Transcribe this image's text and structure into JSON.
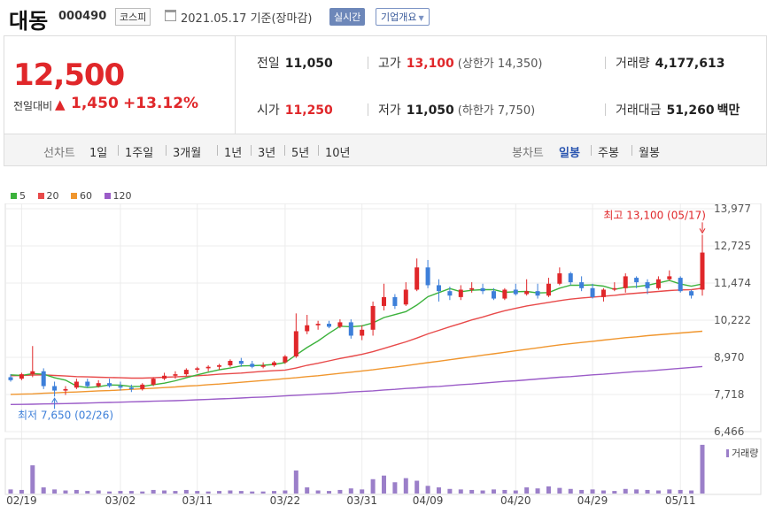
{
  "header": {
    "name": "대동",
    "code": "000490",
    "market": "코스피",
    "date_text": "2021.05.17 기준(장마감)",
    "realtime_label": "실시간",
    "company_label": "기업개요"
  },
  "quote": {
    "price": "12,500",
    "change_label": "전일대비",
    "change_value": "1,450",
    "change_pct": "+13.12%",
    "prev_close_label": "전일",
    "prev_close": "11,050",
    "open_label": "시가",
    "open": "11,250",
    "high_label": "고가",
    "high": "13,100",
    "upper_limit": "(상한가 14,350)",
    "low_label": "저가",
    "low": "11,050",
    "lower_limit": "(하한가 7,750)",
    "volume_label": "거래량",
    "volume": "4,177,613",
    "amount_label": "거래대금",
    "amount": "51,260",
    "amount_unit": "백만"
  },
  "periods": {
    "label": "선차트",
    "items": [
      "1일",
      "1주일",
      "3개월",
      "1년",
      "3년",
      "5년",
      "10년"
    ],
    "candle_label": "봉차트",
    "candle_items": [
      "일봉",
      "주봉",
      "월봉"
    ],
    "active_candle": "일봉"
  },
  "legend": [
    {
      "label": "5",
      "color": "#3cb23c"
    },
    {
      "label": "20",
      "color": "#e84a4a"
    },
    {
      "label": "60",
      "color": "#f0962e"
    },
    {
      "label": "120",
      "color": "#9b5cc8"
    }
  ],
  "chart_data": {
    "type": "candlestick",
    "y_ticks": [
      "13,977",
      "12,725",
      "11,474",
      "10,222",
      "8,970",
      "7,718",
      "6,466"
    ],
    "y_tick_values": [
      13977,
      12725,
      11474,
      10222,
      8970,
      7718,
      6466
    ],
    "ylim": [
      6466,
      13977
    ],
    "x_ticks": [
      "02/19",
      "03/02",
      "03/11",
      "03/22",
      "03/31",
      "04/09",
      "04/20",
      "04/29",
      "05/11"
    ],
    "high_annotation": "최고 13,100 (05/17)",
    "low_annotation": "최저 7,650 (02/26)",
    "volume_label": "거래량",
    "up_color": "#e0272a",
    "down_color": "#3d7fd9",
    "candles": [
      [
        8300,
        8400,
        8150,
        8200
      ],
      [
        8250,
        8450,
        8200,
        8400
      ],
      [
        8400,
        9350,
        8300,
        8500
      ],
      [
        8500,
        8600,
        7900,
        8000
      ],
      [
        8000,
        8150,
        7650,
        7850
      ],
      [
        7850,
        8000,
        7700,
        7900
      ],
      [
        7950,
        8250,
        7900,
        8150
      ],
      [
        8150,
        8250,
        7950,
        8000
      ],
      [
        8000,
        8200,
        7950,
        8100
      ],
      [
        8100,
        8250,
        7950,
        8000
      ],
      [
        8000,
        8150,
        7850,
        7950
      ],
      [
        7950,
        8050,
        7800,
        7900
      ],
      [
        7900,
        8100,
        7850,
        8050
      ],
      [
        8050,
        8300,
        8000,
        8250
      ],
      [
        8250,
        8450,
        8200,
        8350
      ],
      [
        8350,
        8500,
        8250,
        8400
      ],
      [
        8400,
        8600,
        8350,
        8550
      ],
      [
        8550,
        8650,
        8450,
        8600
      ],
      [
        8600,
        8700,
        8500,
        8650
      ],
      [
        8650,
        8750,
        8550,
        8700
      ],
      [
        8700,
        8900,
        8650,
        8850
      ],
      [
        8850,
        8950,
        8650,
        8750
      ],
      [
        8750,
        8850,
        8600,
        8650
      ],
      [
        8650,
        8800,
        8600,
        8700
      ],
      [
        8700,
        8850,
        8650,
        8800
      ],
      [
        8800,
        9050,
        8750,
        9000
      ],
      [
        9000,
        10450,
        8950,
        9850
      ],
      [
        9850,
        10400,
        9750,
        10050
      ],
      [
        10050,
        10200,
        9900,
        10100
      ],
      [
        10100,
        10200,
        9950,
        10000
      ],
      [
        10000,
        10250,
        9950,
        10150
      ],
      [
        10150,
        10250,
        9600,
        9700
      ],
      [
        9700,
        10050,
        9550,
        9900
      ],
      [
        9900,
        10850,
        9700,
        10700
      ],
      [
        10700,
        11450,
        10550,
        11000
      ],
      [
        11000,
        11100,
        10600,
        10700
      ],
      [
        10750,
        11500,
        10700,
        11250
      ],
      [
        11250,
        12300,
        11200,
        12000
      ],
      [
        12000,
        12250,
        11300,
        11400
      ],
      [
        11400,
        11600,
        10850,
        11200
      ],
      [
        11200,
        11350,
        10900,
        11050
      ],
      [
        11000,
        11400,
        10900,
        11250
      ],
      [
        11250,
        11500,
        11150,
        11300
      ],
      [
        11300,
        11450,
        11100,
        11200
      ],
      [
        11200,
        11300,
        10900,
        10950
      ],
      [
        10950,
        11300,
        10900,
        11250
      ],
      [
        11250,
        11450,
        11050,
        11100
      ],
      [
        11100,
        11600,
        11050,
        11200
      ],
      [
        11200,
        11450,
        10950,
        11050
      ],
      [
        11050,
        11650,
        11000,
        11450
      ],
      [
        11450,
        12000,
        11400,
        11800
      ],
      [
        11800,
        11850,
        11400,
        11500
      ],
      [
        11500,
        11700,
        11200,
        11300
      ],
      [
        11300,
        11450,
        10950,
        11000
      ],
      [
        11000,
        11300,
        10850,
        11250
      ],
      [
        11250,
        11500,
        11200,
        11300
      ],
      [
        11300,
        11800,
        11150,
        11700
      ],
      [
        11650,
        11700,
        11300,
        11500
      ],
      [
        11500,
        11600,
        11100,
        11300
      ],
      [
        11300,
        11700,
        11250,
        11600
      ],
      [
        11600,
        11900,
        11550,
        11700
      ],
      [
        11650,
        11700,
        11150,
        11200
      ],
      [
        11200,
        11250,
        10950,
        11050
      ],
      [
        11250,
        13100,
        11050,
        12500
      ]
    ],
    "volumes": [
      0.08,
      0.07,
      0.55,
      0.12,
      0.08,
      0.06,
      0.07,
      0.05,
      0.06,
      0.04,
      0.05,
      0.05,
      0.04,
      0.07,
      0.06,
      0.05,
      0.07,
      0.05,
      0.04,
      0.05,
      0.06,
      0.05,
      0.04,
      0.04,
      0.05,
      0.06,
      0.45,
      0.12,
      0.06,
      0.05,
      0.07,
      0.1,
      0.08,
      0.28,
      0.35,
      0.22,
      0.3,
      0.25,
      0.15,
      0.12,
      0.09,
      0.08,
      0.07,
      0.06,
      0.08,
      0.07,
      0.06,
      0.12,
      0.1,
      0.14,
      0.11,
      0.09,
      0.07,
      0.08,
      0.06,
      0.05,
      0.09,
      0.08,
      0.07,
      0.06,
      0.08,
      0.07,
      0.06,
      0.95
    ],
    "ma5": [
      8380,
      8360,
      8420,
      8400,
      8280,
      8200,
      8000,
      7950,
      7980,
      8040,
      8030,
      7990,
      7990,
      8050,
      8100,
      8180,
      8280,
      8380,
      8470,
      8550,
      8610,
      8680,
      8690,
      8700,
      8730,
      8790,
      9050,
      9300,
      9520,
      9780,
      10020,
      10000,
      10030,
      10130,
      10310,
      10410,
      10510,
      10730,
      11010,
      11150,
      11290,
      11180,
      11230,
      11250,
      11250,
      11160,
      11180,
      11190,
      11140,
      11150,
      11300,
      11400,
      11400,
      11410,
      11370,
      11260,
      11330,
      11350,
      11400,
      11480,
      11560,
      11440,
      11370,
      11440
    ],
    "ma20": [
      8350,
      8360,
      8370,
      8380,
      8360,
      8340,
      8320,
      8310,
      8300,
      8290,
      8280,
      8270,
      8270,
      8280,
      8300,
      8310,
      8330,
      8350,
      8370,
      8400,
      8420,
      8440,
      8470,
      8500,
      8520,
      8540,
      8610,
      8700,
      8770,
      8850,
      8930,
      9000,
      9070,
      9160,
      9270,
      9380,
      9490,
      9620,
      9760,
      9880,
      10000,
      10110,
      10230,
      10330,
      10440,
      10540,
      10620,
      10700,
      10760,
      10820,
      10880,
      10930,
      10970,
      11000,
      11030,
      11060,
      11100,
      11130,
      11160,
      11190,
      11220,
      11240,
      11250,
      11300
    ],
    "ma60": [
      7720,
      7730,
      7740,
      7760,
      7770,
      7790,
      7800,
      7820,
      7840,
      7850,
      7870,
      7890,
      7910,
      7930,
      7950,
      7970,
      8000,
      8020,
      8050,
      8070,
      8100,
      8130,
      8160,
      8190,
      8220,
      8250,
      8280,
      8320,
      8350,
      8390,
      8430,
      8470,
      8510,
      8550,
      8600,
      8640,
      8690,
      8740,
      8790,
      8840,
      8890,
      8940,
      8990,
      9040,
      9090,
      9140,
      9190,
      9240,
      9290,
      9340,
      9390,
      9430,
      9470,
      9510,
      9550,
      9590,
      9630,
      9660,
      9700,
      9730,
      9760,
      9790,
      9820,
      9850
    ],
    "ma120": [
      7380,
      7385,
      7390,
      7400,
      7405,
      7410,
      7420,
      7430,
      7440,
      7450,
      7460,
      7470,
      7480,
      7490,
      7500,
      7510,
      7520,
      7540,
      7550,
      7570,
      7580,
      7600,
      7620,
      7630,
      7650,
      7670,
      7690,
      7710,
      7730,
      7750,
      7770,
      7800,
      7820,
      7840,
      7870,
      7890,
      7920,
      7940,
      7970,
      7990,
      8020,
      8050,
      8070,
      8100,
      8130,
      8160,
      8180,
      8210,
      8240,
      8270,
      8300,
      8320,
      8350,
      8380,
      8400,
      8430,
      8460,
      8490,
      8510,
      8540,
      8570,
      8600,
      8630,
      8660
    ]
  }
}
